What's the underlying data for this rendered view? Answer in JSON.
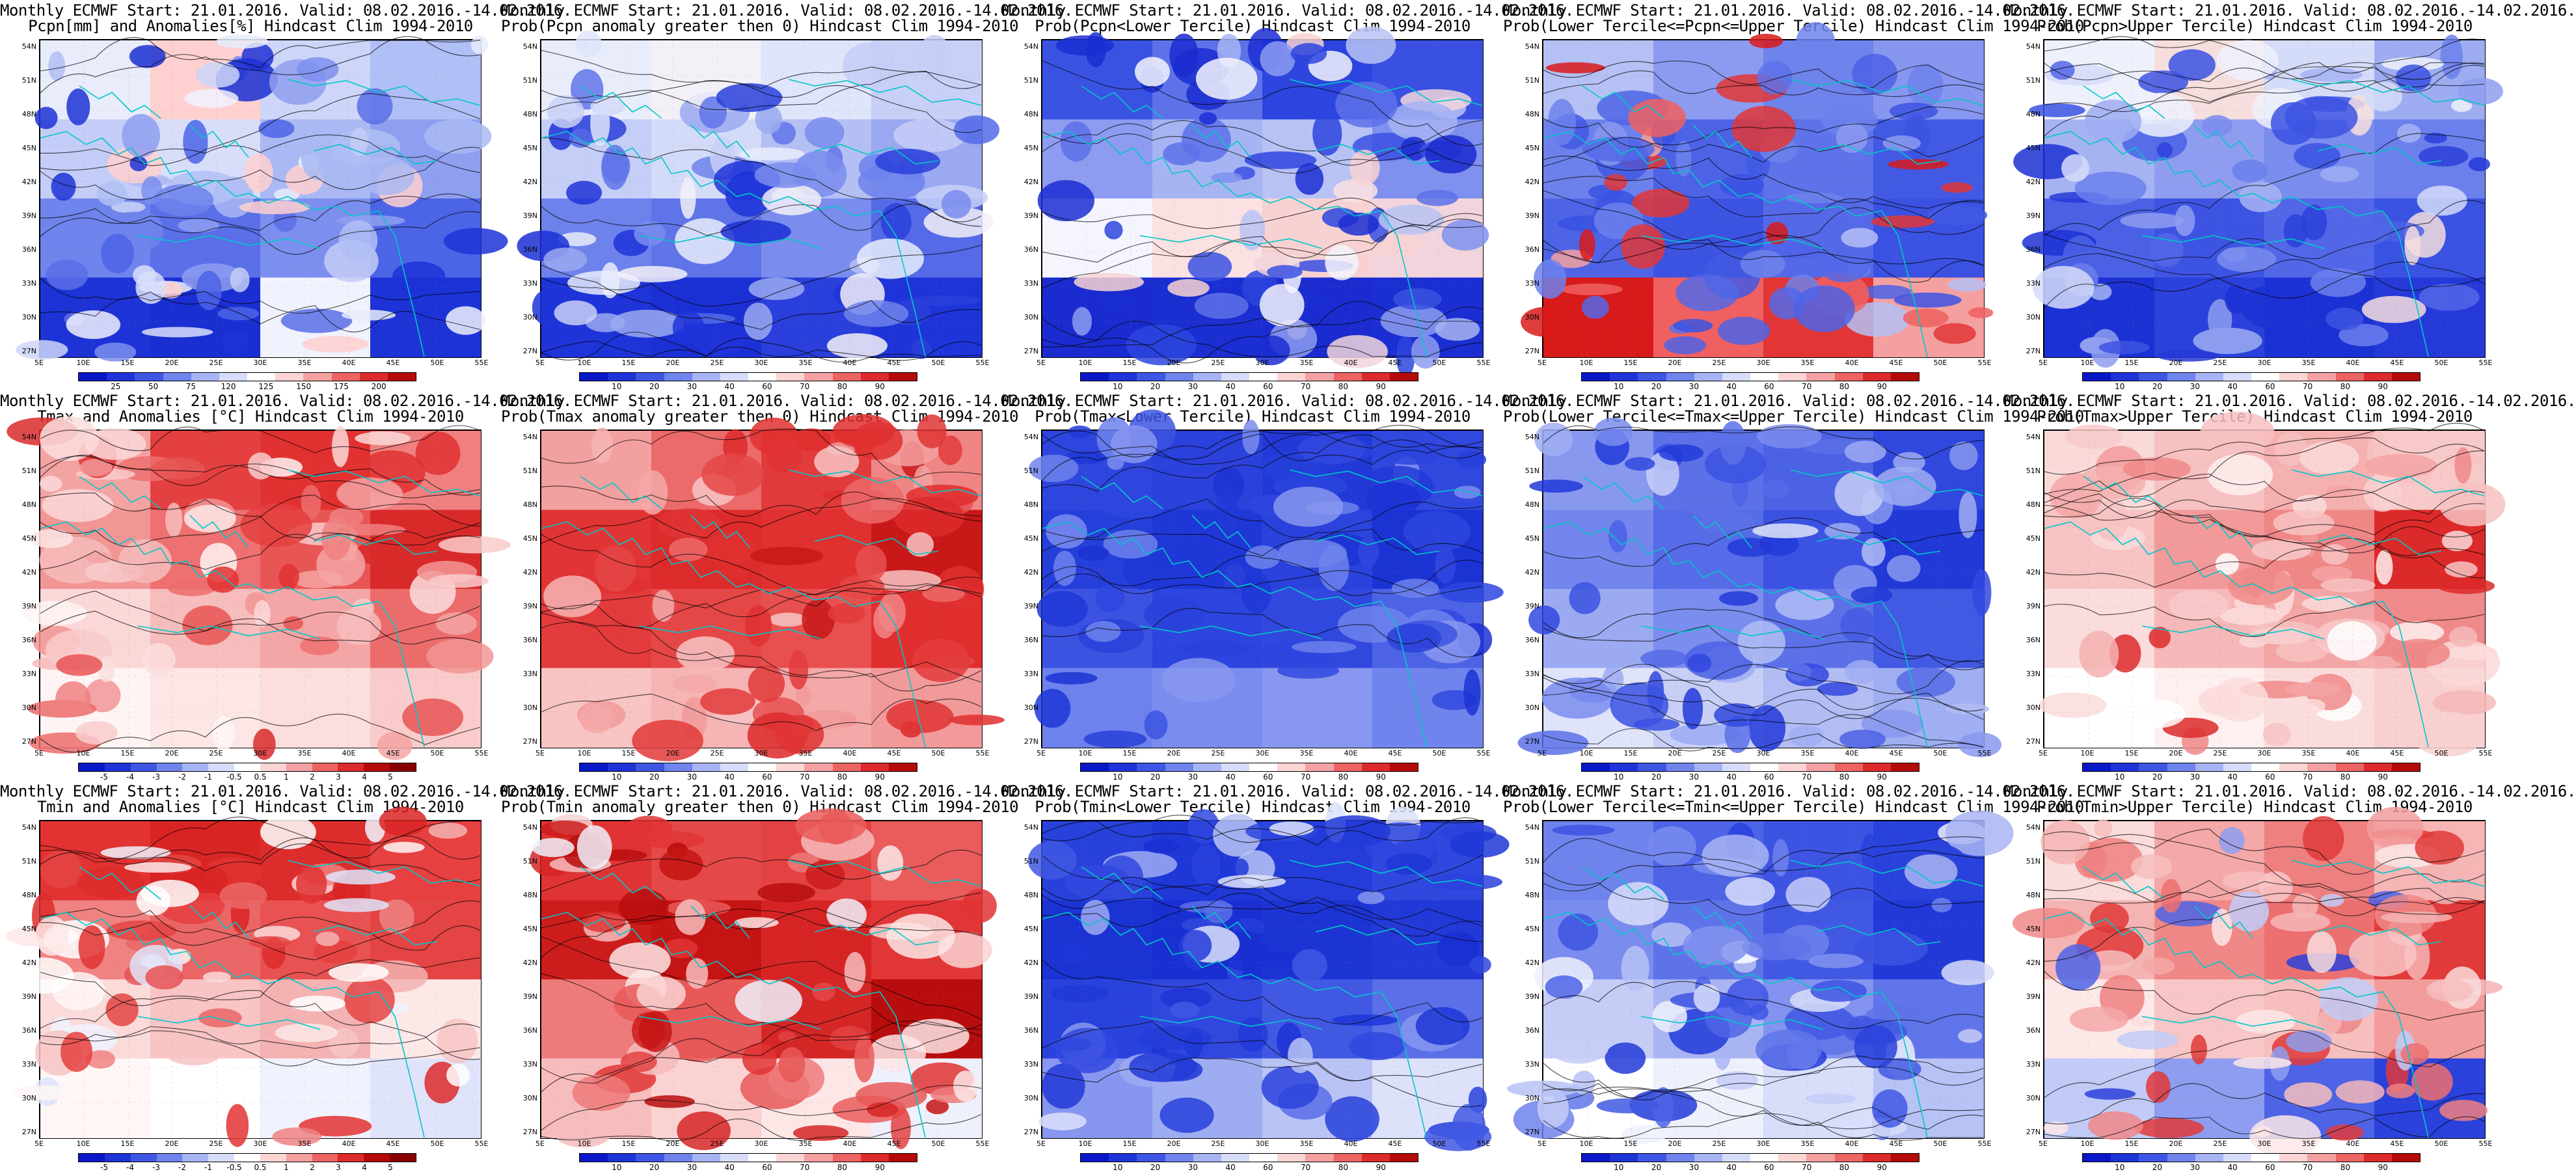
{
  "grid": [
    {
      "title1": "Monthly ECMWF Start: 21.01.2016. Valid: 08.02.2016.-14.02.2016.",
      "title2": "Pcpn[mm] and Anomalies[%] Hindcast Clim 1994-2010",
      "palette": "anom_pcpn",
      "ticks": [
        "25",
        "50",
        "75",
        "120",
        "125",
        "150",
        "175",
        "200"
      ],
      "zones": [
        [
          "#e8ecfb",
          "#ffd0d0",
          "#cdd6f8",
          "#b0bff5"
        ],
        [
          "#c4cdf7",
          "#d8defa",
          "#aab8f3",
          "#8f9ff0"
        ],
        [
          "#6f84ec",
          "#5a6fe8",
          "#7d8fee",
          "#4c64e6"
        ],
        [
          "#1d33d6",
          "#1a2fd2",
          "#f0f2fd",
          "#1d33d6"
        ]
      ]
    },
    {
      "title1": "Monthly ECMWF Start: 21.01.2016. Valid: 08.02.2016.-14.02.2016.",
      "title2": "Prob(Pcpn anomaly greater then 0) Hindcast Clim 1994-2010",
      "palette": "prob",
      "ticks": [
        "10",
        "20",
        "30",
        "40",
        "60",
        "70",
        "80",
        "90"
      ],
      "zones": [
        [
          "#e9edfb",
          "#f3f0f8",
          "#dfe5fa",
          "#c8d0f7"
        ],
        [
          "#c5cef7",
          "#d4dbf9",
          "#b4c0f4",
          "#9aa9f1"
        ],
        [
          "#6e82ec",
          "#6074e9",
          "#7a8ced",
          "#546ae7"
        ],
        [
          "#1e34d8",
          "#1b30d4",
          "#2a3fdb",
          "#1e34d8"
        ]
      ]
    },
    {
      "title1": "Monthly ECMWF Start: 21.01.2016. Valid: 08.02.2016.-14.02.2016.",
      "title2": "Prob(Pcpn<Lower Tercile) Hindcast Clim 1994-2010",
      "palette": "prob",
      "ticks": [
        "10",
        "20",
        "30",
        "40",
        "60",
        "70",
        "80",
        "90"
      ],
      "zones": [
        [
          "#3a52e2",
          "#5d71e9",
          "#2d45de",
          "#3950e2"
        ],
        [
          "#8d9cf0",
          "#a7b4f3",
          "#b8c3f5",
          "#7f90ee"
        ],
        [
          "#f4f5fd",
          "#fbe1e1",
          "#f8d2d2",
          "#f2d5dc"
        ],
        [
          "#1a2ccf",
          "#1b2ed2",
          "#1a2ccf",
          "#1b2ed2"
        ]
      ]
    },
    {
      "title1": "Monthly ECMWF Start: 21.01.2016. Valid: 08.02.2016.-14.02.2016.",
      "title2": "Prob(Lower Tercile<=Pcpn<=Upper Tercile) Hindcast Clim 1994-2010",
      "palette": "prob",
      "ticks": [
        "10",
        "20",
        "30",
        "40",
        "60",
        "70",
        "80",
        "90"
      ],
      "zones": [
        [
          "#b5c0f4",
          "#8c9bf0",
          "#6f83ec",
          "#8796ef"
        ],
        [
          "#6d81ec",
          "#4d63e6",
          "#5e72e9",
          "#4259e3"
        ],
        [
          "#4e64e6",
          "#3c53e2",
          "#5469e7",
          "#3a51e2"
        ],
        [
          "#d91a1a",
          "#f06060",
          "#e23636",
          "#f4a0a0"
        ]
      ]
    },
    {
      "title1": "Monthly ECMWF Start: 21.01.2016. Valid: 08.02.2016.-14.02.2016.",
      "title2": "Prob(Pcpn>Upper Tercile) Hindcast Clim 1994-2010",
      "palette": "prob",
      "ticks": [
        "10",
        "20",
        "30",
        "40",
        "60",
        "70",
        "80",
        "90"
      ],
      "zones": [
        [
          "#eef1fc",
          "#f6dede",
          "#d5dcf9",
          "#9eadf2"
        ],
        [
          "#a6b3f3",
          "#8e9df0",
          "#7a8cee",
          "#6b80ec"
        ],
        [
          "#4a61e5",
          "#3d54e3",
          "#5267e7",
          "#3a52e2"
        ],
        [
          "#1c31d4",
          "#2b41db",
          "#1c31d4",
          "#2539d8"
        ]
      ]
    },
    {
      "title1": "Monthly ECMWF Start: 21.01.2016. Valid: 08.02.2016.-14.02.2016.",
      "title2": "Tmax and Anomalies [°C] Hindcast Clim 1994-2010",
      "palette": "anom_temp",
      "ticks": [
        "-5",
        "-4",
        "-3",
        "-2",
        "-1",
        "-0.5",
        "0.5",
        "1",
        "2",
        "3",
        "4",
        "5"
      ],
      "zones": [
        [
          "#f4a3a3",
          "#e44040",
          "#e23131",
          "#f08080"
        ],
        [
          "#f29595",
          "#ee7070",
          "#e85555",
          "#d92a2a"
        ],
        [
          "#fbd8d8",
          "#f7bcbc",
          "#f4a6a6",
          "#ec6c6c"
        ],
        [
          "#fff4f4",
          "#fde6e6",
          "#fcdede",
          "#f9cbcb"
        ]
      ]
    },
    {
      "title1": "Monthly ECMWF Start: 21.01.2016. Valid: 08.02.2016.-14.02.2016.",
      "title2": "Prob(Tmax anomaly greater then 0) Hindcast Clim 1994-2010",
      "palette": "prob",
      "ticks": [
        "10",
        "20",
        "30",
        "40",
        "60",
        "70",
        "80",
        "90"
      ],
      "zones": [
        [
          "#f3a0a0",
          "#ec6a6a",
          "#e23a3a",
          "#f08585"
        ],
        [
          "#e13434",
          "#dd2a2a",
          "#e03030",
          "#c81818"
        ],
        [
          "#e33b3b",
          "#e54646",
          "#e85050",
          "#e02e2e"
        ],
        [
          "#f8c4c4",
          "#f6b4b4",
          "#f4a8a8",
          "#f29a9a"
        ]
      ]
    },
    {
      "title1": "Monthly ECMWF Start: 21.01.2016. Valid: 08.02.2016.-14.02.2016.",
      "title2": "Prob(Tmax<Lower Tercile) Hindcast Clim 1994-2010",
      "palette": "prob",
      "ticks": [
        "10",
        "20",
        "30",
        "40",
        "60",
        "70",
        "80",
        "90"
      ],
      "zones": [
        [
          "#2e46de",
          "#2a41db",
          "#2239d8",
          "#3148df"
        ],
        [
          "#2540da",
          "#1f37d7",
          "#2a41db",
          "#1c33d4"
        ],
        [
          "#3c53e2",
          "#2d45de",
          "#3148df",
          "#4d63e6"
        ],
        [
          "#6d82ec",
          "#7a8cee",
          "#8897ef",
          "#6f84ec"
        ]
      ]
    },
    {
      "title1": "Monthly ECMWF Start: 21.01.2016. Valid: 08.02.2016.-14.02.2016.",
      "title2": "Prob(Lower Tercile<=Tmax<=Upper Tercile) Hindcast Clim 1994-2010",
      "palette": "prob",
      "ticks": [
        "10",
        "20",
        "30",
        "40",
        "60",
        "70",
        "80",
        "90"
      ],
      "zones": [
        [
          "#8898ef",
          "#5c70e8",
          "#4c62e5",
          "#3148df"
        ],
        [
          "#7486ed",
          "#566be7",
          "#3b52e2",
          "#2239d8"
        ],
        [
          "#9caaf2",
          "#7b8dee",
          "#5c71e8",
          "#4259e3"
        ],
        [
          "#dfe4fa",
          "#c7cff7",
          "#b2bdf4",
          "#a0aef2"
        ]
      ]
    },
    {
      "title1": "Monthly ECMWF Start: 21.01.2016. Valid: 08.02.2016.-14.02.2016.",
      "title2": "Prob(Tmax>Upper Tercile) Hindcast Clim 1994-2010",
      "palette": "prob",
      "ticks": [
        "10",
        "20",
        "30",
        "40",
        "60",
        "70",
        "80",
        "90"
      ],
      "zones": [
        [
          "#fad9d9",
          "#f7c1c1",
          "#f5b0b0",
          "#f8c9c9"
        ],
        [
          "#f7c3c3",
          "#f29a9a",
          "#ef8787",
          "#dc2a2a"
        ],
        [
          "#fbdcdc",
          "#f6b8b8",
          "#f4a5a5",
          "#f08a8a"
        ],
        [
          "#ffffff",
          "#fff0f0",
          "#fbdcdc",
          "#f9d0d0"
        ]
      ]
    },
    {
      "title1": "Monthly ECMWF Start: 21.01.2016. Valid: 08.02.2016.-14.02.2016.",
      "title2": "Tmin and Anomalies [°C] Hindcast Clim 1994-2010",
      "palette": "anom_temp",
      "ticks": [
        "-5",
        "-4",
        "-3",
        "-2",
        "-1",
        "-0.5",
        "0.5",
        "1",
        "2",
        "3",
        "4",
        "5"
      ],
      "zones": [
        [
          "#e23232",
          "#d92424",
          "#dd2c2c",
          "#e64040"
        ],
        [
          "#f08282",
          "#eb6666",
          "#e85252",
          "#e44444"
        ],
        [
          "#fbdada",
          "#f8c4c4",
          "#f5b2b2",
          "#fde8e8"
        ],
        [
          "#fff6f6",
          "#ffffff",
          "#f0f2fd",
          "#dfe4fa"
        ]
      ]
    },
    {
      "title1": "Monthly ECMWF Start: 21.01.2016. Valid: 08.02.2016.-14.02.2016.",
      "title2": "Prob(Tmin anomaly greater then 0) Hindcast Clim 1994-2010",
      "palette": "prob",
      "ticks": [
        "10",
        "20",
        "30",
        "40",
        "60",
        "70",
        "80",
        "90"
      ],
      "zones": [
        [
          "#e03434",
          "#e54848",
          "#e44242",
          "#ea5c5c"
        ],
        [
          "#cc1c1c",
          "#c51414",
          "#d62424",
          "#e13636"
        ],
        [
          "#ee7a7a",
          "#e85858",
          "#d52626",
          "#b80d0d"
        ],
        [
          "#f7bcbc",
          "#fad2d2",
          "#fde6e6",
          "#eef1fc"
        ]
      ]
    },
    {
      "title1": "Monthly ECMWF Start: 21.01.2016. Valid: 08.02.2016.-14.02.2016.",
      "title2": "Prob(Tmin<Lower Tercile) Hindcast Clim 1994-2010",
      "palette": "prob",
      "ticks": [
        "10",
        "20",
        "30",
        "40",
        "60",
        "70",
        "80",
        "90"
      ],
      "zones": [
        [
          "#2741da",
          "#1f37d7",
          "#243cd9",
          "#2f47de"
        ],
        [
          "#1c33d4",
          "#1a2fd2",
          "#1d34d5",
          "#2239d8"
        ],
        [
          "#2a42dc",
          "#3148df",
          "#4158e3",
          "#5a6fe8"
        ],
        [
          "#8796ef",
          "#9eacf2",
          "#b9c3f5",
          "#dde2fa"
        ]
      ]
    },
    {
      "title1": "Monthly ECMWF Start: 21.01.2016. Valid: 08.02.2016.-14.02.2016.",
      "title2": "Prob(Lower Tercile<=Tmin<=Upper Tercile) Hindcast Clim 1994-2010",
      "palette": "prob",
      "ticks": [
        "10",
        "20",
        "30",
        "40",
        "60",
        "70",
        "80",
        "90"
      ],
      "zones": [
        [
          "#6f83ec",
          "#4e64e6",
          "#3d54e3",
          "#2a42dc"
        ],
        [
          "#7a8cee",
          "#5f73e9",
          "#4158e3",
          "#2239d8"
        ],
        [
          "#c5cdf7",
          "#a9b5f3",
          "#8393ef",
          "#6075e9"
        ],
        [
          "#ffffff",
          "#eef1fc",
          "#d8defa",
          "#b7c2f5"
        ]
      ]
    },
    {
      "title1": "Monthly ECMWF Start: 21.01.2016. Valid: 08.02.2016.-14.02.2016.",
      "title2": "Prob(Tmin>Upper Tercile) Hindcast Clim 1994-2010",
      "palette": "prob",
      "ticks": [
        "10",
        "20",
        "30",
        "40",
        "60",
        "70",
        "80",
        "90"
      ],
      "zones": [
        [
          "#fadcdc",
          "#f4a8a8",
          "#ee8080",
          "#f6b6b6"
        ],
        [
          "#f5b4b4",
          "#f08888",
          "#ec7070",
          "#e13a3a"
        ],
        [
          "#fde8e8",
          "#f8c6c6",
          "#f7bebe",
          "#f29c9c"
        ],
        [
          "#c2cbf7",
          "#8e9df0",
          "#4e64e6",
          "#2a41db"
        ]
      ]
    }
  ],
  "lat_labels": [
    "54N",
    "51N",
    "48N",
    "45N",
    "42N",
    "39N",
    "36N",
    "33N",
    "30N",
    "27N"
  ],
  "lon_labels": [
    "5E",
    "10E",
    "15E",
    "20E",
    "25E",
    "30E",
    "35E",
    "40E",
    "45E",
    "50E",
    "55E"
  ],
  "palettes": {
    "prob": [
      "#0a17c8",
      "#1e34d8",
      "#3e56e3",
      "#6f84ec",
      "#a7b4f3",
      "#d7ddf9",
      "#ffffff",
      "#fbd4d4",
      "#f4a0a0",
      "#ec6464",
      "#dd2a2a",
      "#b50a0a"
    ],
    "anom_pcpn": [
      "#0a17c8",
      "#1e34d8",
      "#3e56e3",
      "#6f84ec",
      "#a7b4f3",
      "#d7ddf9",
      "#ffffff",
      "#fbd4d4",
      "#f4a0a0",
      "#ec6464",
      "#dd2a2a",
      "#b50a0a"
    ],
    "anom_temp": [
      "#0a17c8",
      "#1e34d8",
      "#3e56e3",
      "#6f84ec",
      "#a7b4f3",
      "#d7ddf9",
      "#ffffff",
      "#fbd4d4",
      "#f4a0a0",
      "#ec6464",
      "#dd2a2a",
      "#b50a0a",
      "#8a0000"
    ]
  },
  "colors": {
    "coast": "#00c8c8",
    "contour": "#000000",
    "frame": "#000000"
  }
}
